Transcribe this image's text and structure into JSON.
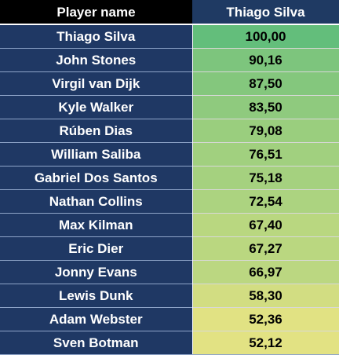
{
  "table": {
    "headers": {
      "name": "Player name",
      "score": "Thiago Silva"
    },
    "rows": [
      {
        "name": "Thiago Silva",
        "score": "100,00",
        "value": 100.0
      },
      {
        "name": "John Stones",
        "score": "90,16",
        "value": 90.16
      },
      {
        "name": "Virgil van Dijk",
        "score": "87,50",
        "value": 87.5
      },
      {
        "name": "Kyle Walker",
        "score": "83,50",
        "value": 83.5
      },
      {
        "name": "Rúben Dias",
        "score": "79,08",
        "value": 79.08
      },
      {
        "name": "William Saliba",
        "score": "76,51",
        "value": 76.51
      },
      {
        "name": "Gabriel Dos Santos",
        "score": "75,18",
        "value": 75.18
      },
      {
        "name": "Nathan Collins",
        "score": "72,54",
        "value": 72.54
      },
      {
        "name": "Max Kilman",
        "score": "67,40",
        "value": 67.4
      },
      {
        "name": "Eric Dier",
        "score": "67,27",
        "value": 67.27
      },
      {
        "name": "Jonny Evans",
        "score": "66,97",
        "value": 66.97
      },
      {
        "name": "Lewis Dunk",
        "score": "58,30",
        "value": 58.3
      },
      {
        "name": "Adam Webster",
        "score": "52,36",
        "value": 52.36
      },
      {
        "name": "Sven Botman",
        "score": "52,12",
        "value": 52.12
      }
    ]
  },
  "colors": {
    "header_name_bg": "#000000",
    "header_score_bg": "#1f3a63",
    "name_cell_bg": "#1f3864",
    "scale_high": "#63be7b",
    "scale_low": "#e2e283"
  }
}
